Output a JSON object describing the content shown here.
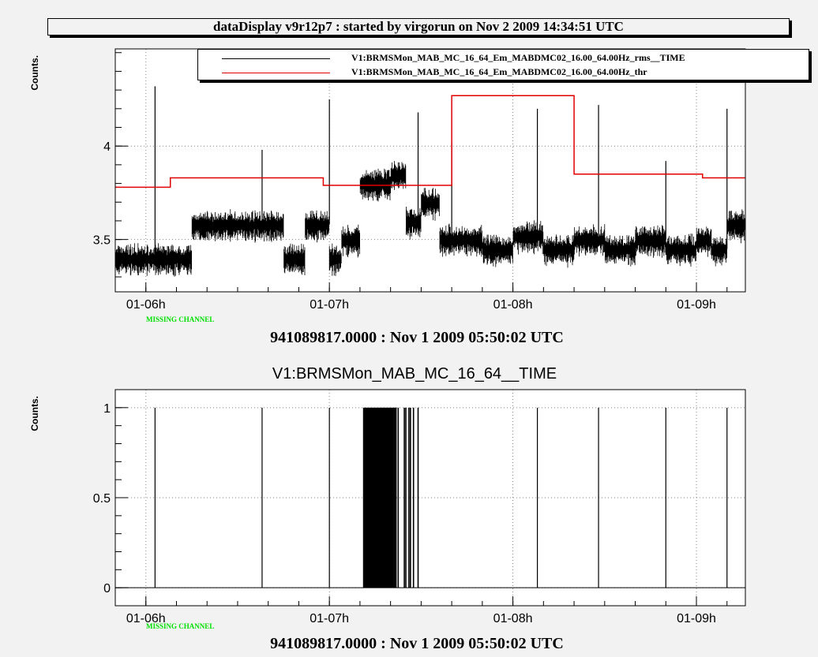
{
  "header": {
    "title": "dataDisplay v9r12p7 : started by virgorun on Nov  2 2009 14:34:51 UTC"
  },
  "colors": {
    "background": "#f2f2f2",
    "rms_series": "#000000",
    "threshold_series": "#e00000",
    "missing_channel": "#00e000"
  },
  "chart_data": [
    {
      "type": "line",
      "title": "",
      "ylabel": "Counts.",
      "xlabel": "941089817.0000 : Nov  1 2009 05:50:02 UTC",
      "x_ticks": [
        "01-06h",
        "01-07h",
        "01-08h",
        "01-09h"
      ],
      "y_ticks": [
        "3.5",
        "4"
      ],
      "xlim": [
        "01-05h50",
        "01-09h16"
      ],
      "ylim": [
        3.22,
        4.52
      ],
      "grid": true,
      "legend_position": "top-right",
      "status_label": "MISSING CHANNEL",
      "series": [
        {
          "name": "V1:BRMSMon_MAB_MC_16_64_Em_MABDMC02_16.00_64.00Hz_rms__TIME",
          "color": "#000000",
          "baseline": 3.4,
          "noise_band": 0.06,
          "x": [
            "01-05h50",
            "01-06h10",
            "01-06h15",
            "01-06h45",
            "01-06h52",
            "01-07h00",
            "01-07h04",
            "01-07h10",
            "01-07h20",
            "01-07h25",
            "01-07h30",
            "01-07h36",
            "01-07h50",
            "01-08h00",
            "01-08h10",
            "01-08h20",
            "01-08h30",
            "01-08h40",
            "01-08h50",
            "01-09h00",
            "01-09h05",
            "01-09h10",
            "01-09h16"
          ],
          "values": [
            3.4,
            3.4,
            3.58,
            3.4,
            3.58,
            3.4,
            3.5,
            3.8,
            3.85,
            3.6,
            3.7,
            3.5,
            3.45,
            3.52,
            3.45,
            3.5,
            3.45,
            3.5,
            3.45,
            3.5,
            3.45,
            3.58,
            3.45
          ],
          "spikes": [
            {
              "x": "01-06h03",
              "value": 4.32
            },
            {
              "x": "01-06h38",
              "value": 3.98
            },
            {
              "x": "01-07h00",
              "value": 4.25
            },
            {
              "x": "01-07h29",
              "value": 4.18
            },
            {
              "x": "01-07h40",
              "value": 4.02
            },
            {
              "x": "01-08h08",
              "value": 4.2
            },
            {
              "x": "01-08h28",
              "value": 4.22
            },
            {
              "x": "01-08h50",
              "value": 3.92
            },
            {
              "x": "01-09h10",
              "value": 4.2
            }
          ]
        },
        {
          "name": "V1:BRMSMon_MAB_MC_16_64_Em_MABDMC02_16.00_64.00Hz_thr",
          "color": "#e00000",
          "type": "step",
          "x": [
            "01-05h50",
            "01-06h08",
            "01-06h58",
            "01-07h40",
            "01-08h20",
            "01-09h02",
            "01-09h16"
          ],
          "values": [
            3.78,
            3.83,
            3.79,
            4.27,
            3.85,
            3.83,
            3.83
          ]
        }
      ]
    },
    {
      "type": "bar",
      "title": "V1:BRMSMon_MAB_MC_16_64__TIME",
      "ylabel": "Counts.",
      "xlabel": "941089817.0000 : Nov  1 2009 05:50:02 UTC",
      "x_ticks": [
        "01-06h",
        "01-07h",
        "01-08h",
        "01-09h"
      ],
      "y_ticks": [
        "0",
        "0.5",
        "1"
      ],
      "xlim": [
        "01-05h50",
        "01-09h16"
      ],
      "ylim": [
        -0.1,
        1.1
      ],
      "grid": true,
      "status_label": "MISSING CHANNEL",
      "pulse_value": 1,
      "pulses": [
        "01-06h03",
        "01-06h38",
        "01-07h00",
        "01-08h08",
        "01-08h28",
        "01-08h50",
        "01-09h10"
      ],
      "pulse_blocks": [
        {
          "from": "01-07h11",
          "to": "01-07h21"
        },
        {
          "from": "01-07h21",
          "to": "01-07h22"
        }
      ],
      "pulses_cluster": [
        "01-07h21.5",
        "01-07h22.5",
        "01-07h24.5",
        "01-07h25",
        "01-07h26",
        "01-07h26.5",
        "01-07h27.5",
        "01-07h29"
      ]
    }
  ]
}
